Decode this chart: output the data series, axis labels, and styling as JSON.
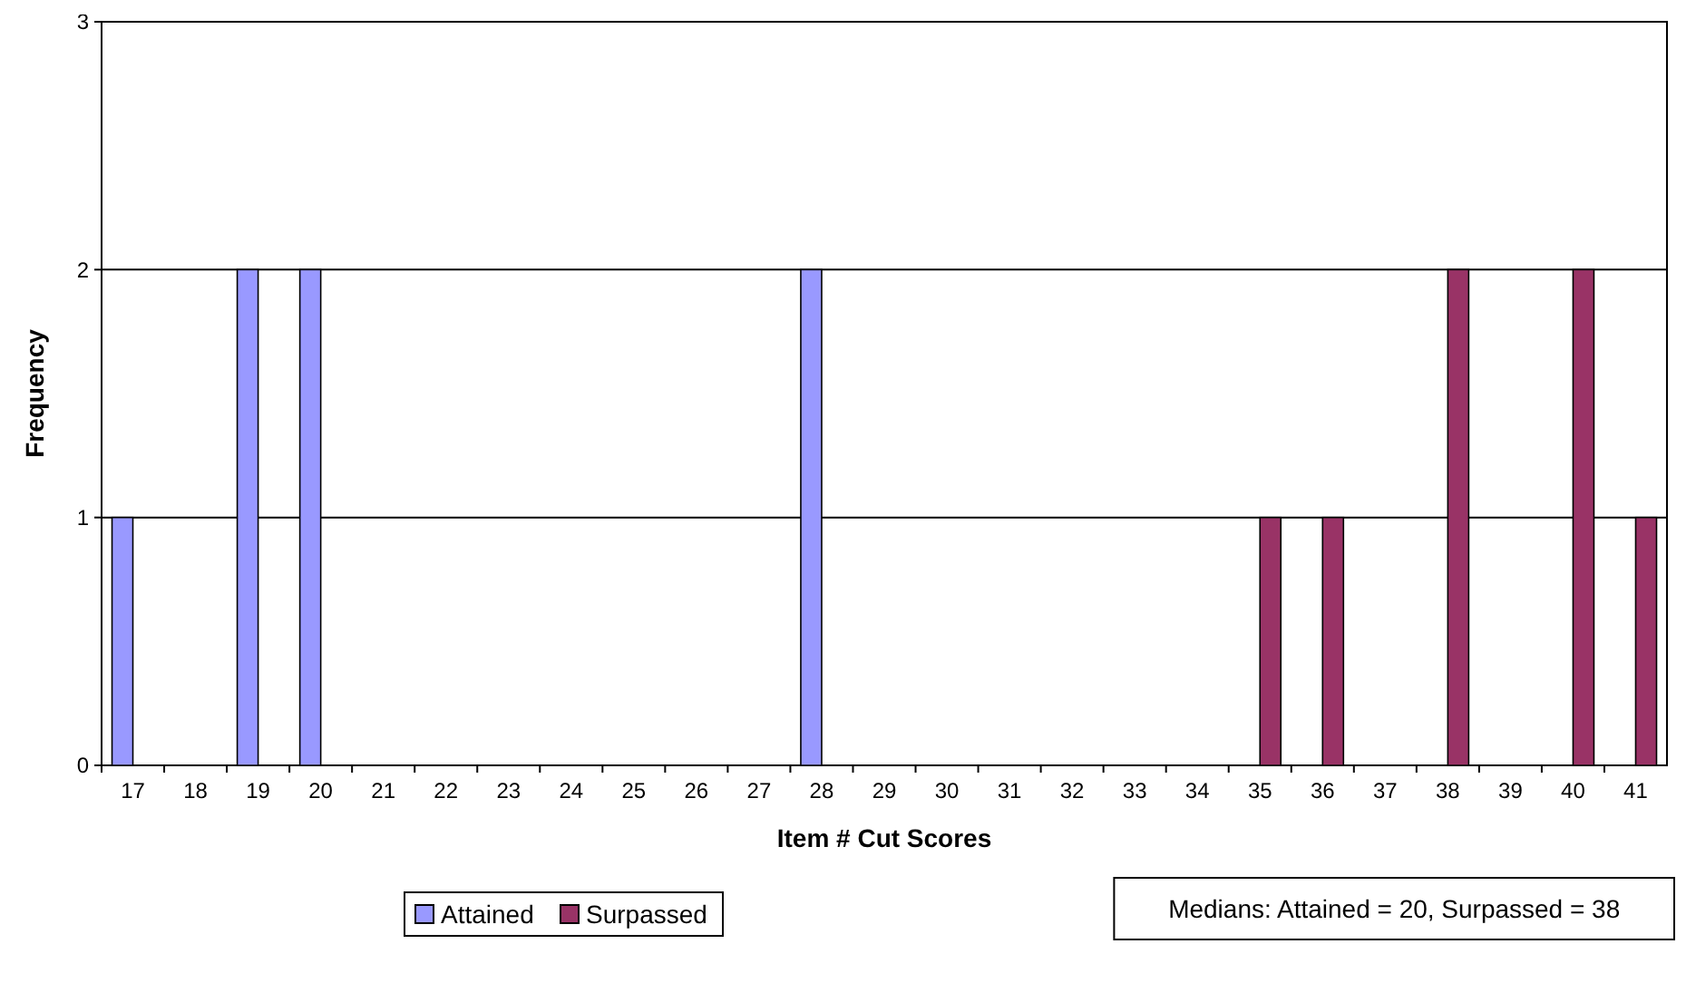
{
  "chart_data": {
    "type": "bar",
    "xlabel": "Item # Cut Scores",
    "ylabel": "Frequency",
    "categories": [
      "17",
      "18",
      "19",
      "20",
      "21",
      "22",
      "23",
      "24",
      "25",
      "26",
      "27",
      "28",
      "29",
      "30",
      "31",
      "32",
      "33",
      "34",
      "35",
      "36",
      "37",
      "38",
      "39",
      "40",
      "41"
    ],
    "series": [
      {
        "name": "Attained",
        "color": "#9999ff",
        "values": [
          1,
          0,
          2,
          2,
          0,
          0,
          0,
          0,
          0,
          0,
          0,
          2,
          0,
          0,
          0,
          0,
          0,
          0,
          0,
          0,
          0,
          0,
          0,
          0,
          0
        ]
      },
      {
        "name": "Surpassed",
        "color": "#993366",
        "values": [
          0,
          0,
          0,
          0,
          0,
          0,
          0,
          0,
          0,
          0,
          0,
          0,
          0,
          0,
          0,
          0,
          0,
          0,
          1,
          1,
          0,
          2,
          0,
          2,
          1
        ]
      }
    ],
    "ylim": [
      0,
      3
    ],
    "yticks": [
      0,
      1,
      2,
      3
    ],
    "grid": "y",
    "legend": "bottom",
    "annotations": [
      "Medians: Attained = 20, Surpassed = 38"
    ]
  }
}
